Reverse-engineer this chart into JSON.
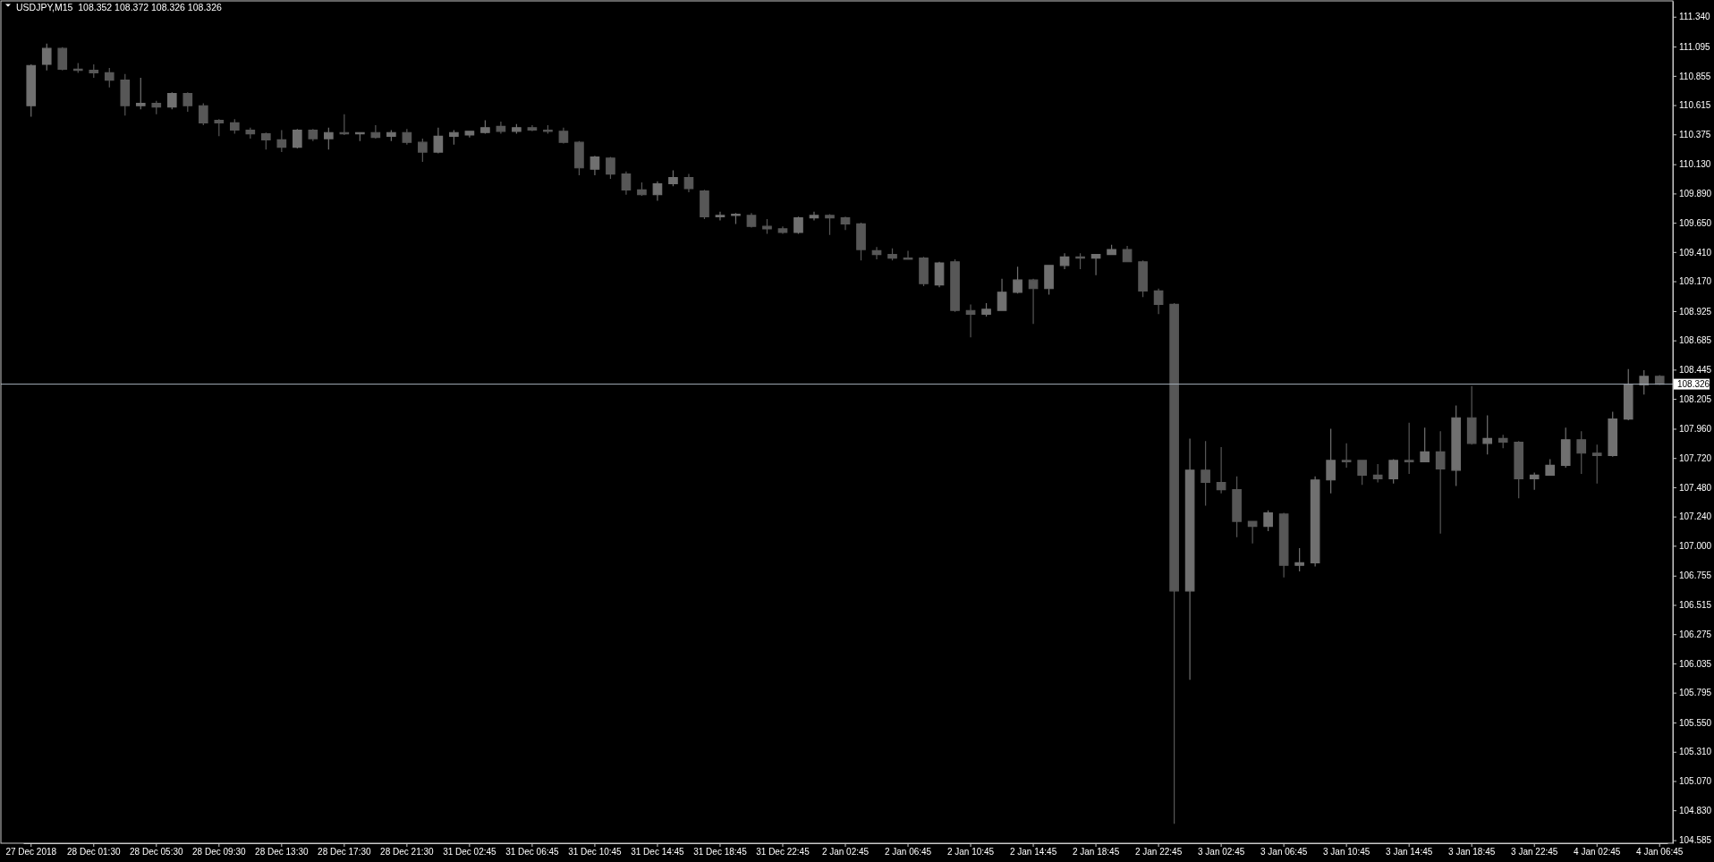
{
  "chart_data": {
    "type": "candlestick",
    "title": "USDJPY,M15  108.352 108.372 108.326 108.326",
    "categories": [
      "27 Dec 2018",
      null,
      null,
      null,
      "28 Dec 01:30",
      null,
      null,
      null,
      "28 Dec 05:30",
      null,
      null,
      null,
      "28 Dec 09:30",
      null,
      null,
      null,
      "28 Dec 13:30",
      null,
      null,
      null,
      "28 Dec 17:30",
      null,
      null,
      null,
      "28 Dec 21:30",
      null,
      null,
      null,
      "31 Dec 02:45",
      null,
      null,
      null,
      "31 Dec 06:45",
      null,
      null,
      null,
      "31 Dec 10:45",
      null,
      null,
      null,
      "31 Dec 14:45",
      null,
      null,
      null,
      "31 Dec 18:45",
      null,
      null,
      null,
      "31 Dec 22:45",
      null,
      null,
      null,
      "2 Jan 02:45",
      null,
      null,
      null,
      "2 Jan 06:45",
      null,
      null,
      null,
      "2 Jan 10:45",
      null,
      null,
      null,
      "2 Jan 14:45",
      null,
      null,
      null,
      "2 Jan 18:45",
      null,
      null,
      null,
      "2 Jan 22:45",
      null,
      null,
      null,
      "3 Jan 02:45",
      null,
      null,
      null,
      "3 Jan 06:45",
      null,
      null,
      null,
      "3 Jan 10:45",
      null,
      null,
      null,
      "3 Jan 14:45",
      null,
      null,
      null,
      "3 Jan 18:45",
      null,
      null,
      null,
      "3 Jan 22:45",
      null,
      null,
      null,
      "4 Jan 02:45",
      null,
      null,
      null,
      "4 Jan 06:45"
    ],
    "ohlc": [
      [
        110.61,
        110.95,
        110.52,
        110.94
      ],
      [
        110.95,
        111.12,
        110.9,
        111.08
      ],
      [
        111.08,
        111.09,
        110.9,
        110.91
      ],
      [
        110.91,
        110.96,
        110.88,
        110.9
      ],
      [
        110.9,
        110.95,
        110.84,
        110.88
      ],
      [
        110.88,
        110.92,
        110.76,
        110.82
      ],
      [
        110.82,
        110.87,
        110.53,
        110.61
      ],
      [
        110.61,
        110.84,
        110.58,
        110.63
      ],
      [
        110.63,
        110.65,
        110.54,
        110.6
      ],
      [
        110.6,
        110.72,
        110.58,
        110.71
      ],
      [
        110.71,
        110.72,
        110.56,
        110.61
      ],
      [
        110.61,
        110.63,
        110.45,
        110.47
      ],
      [
        110.49,
        110.5,
        110.36,
        110.47
      ],
      [
        110.47,
        110.5,
        110.38,
        110.41
      ],
      [
        110.41,
        110.43,
        110.34,
        110.38
      ],
      [
        110.38,
        110.39,
        110.25,
        110.33
      ],
      [
        110.33,
        110.41,
        110.23,
        110.27
      ],
      [
        110.27,
        110.42,
        110.26,
        110.41
      ],
      [
        110.41,
        110.42,
        110.32,
        110.34
      ],
      [
        110.34,
        110.43,
        110.25,
        110.39
      ],
      [
        110.39,
        110.54,
        110.37,
        110.38
      ],
      [
        110.38,
        110.39,
        110.32,
        110.39
      ],
      [
        110.39,
        110.45,
        110.34,
        110.35
      ],
      [
        110.36,
        110.41,
        110.32,
        110.39
      ],
      [
        110.39,
        110.42,
        110.29,
        110.31
      ],
      [
        110.31,
        110.34,
        110.15,
        110.23
      ],
      [
        110.23,
        110.43,
        110.22,
        110.36
      ],
      [
        110.36,
        110.41,
        110.29,
        110.39
      ],
      [
        110.37,
        110.4,
        110.35,
        110.4
      ],
      [
        110.39,
        110.49,
        110.38,
        110.43
      ],
      [
        110.44,
        110.48,
        110.38,
        110.4
      ],
      [
        110.4,
        110.46,
        110.38,
        110.43
      ],
      [
        110.43,
        110.45,
        110.4,
        110.41
      ],
      [
        110.41,
        110.45,
        110.38,
        110.4
      ],
      [
        110.4,
        110.43,
        110.3,
        110.31
      ],
      [
        110.31,
        110.32,
        110.04,
        110.1
      ],
      [
        110.09,
        110.2,
        110.04,
        110.19
      ],
      [
        110.18,
        110.19,
        110.01,
        110.05
      ],
      [
        110.05,
        110.07,
        109.88,
        109.92
      ],
      [
        109.92,
        109.98,
        109.87,
        109.88
      ],
      [
        109.88,
        109.99,
        109.83,
        109.97
      ],
      [
        109.97,
        110.08,
        109.95,
        110.02
      ],
      [
        110.02,
        110.05,
        109.9,
        109.93
      ],
      [
        109.91,
        109.92,
        109.68,
        109.7
      ],
      [
        109.7,
        109.74,
        109.67,
        109.71
      ],
      [
        109.71,
        109.73,
        109.64,
        109.72
      ],
      [
        109.71,
        109.73,
        109.61,
        109.62
      ],
      [
        109.62,
        109.68,
        109.56,
        109.6
      ],
      [
        109.6,
        109.62,
        109.56,
        109.57
      ],
      [
        109.57,
        109.7,
        109.56,
        109.69
      ],
      [
        109.69,
        109.74,
        109.67,
        109.71
      ],
      [
        109.71,
        109.72,
        109.55,
        109.69
      ],
      [
        109.69,
        109.7,
        109.59,
        109.64
      ],
      [
        109.64,
        109.65,
        109.34,
        109.43
      ],
      [
        109.42,
        109.45,
        109.35,
        109.39
      ],
      [
        109.39,
        109.44,
        109.34,
        109.36
      ],
      [
        109.36,
        109.42,
        109.35,
        109.35
      ],
      [
        109.36,
        109.37,
        109.13,
        109.15
      ],
      [
        109.14,
        109.33,
        109.12,
        109.32
      ],
      [
        109.33,
        109.35,
        108.92,
        108.93
      ],
      [
        108.93,
        108.98,
        108.71,
        108.9
      ],
      [
        108.9,
        108.99,
        108.88,
        108.94
      ],
      [
        108.93,
        109.19,
        108.93,
        109.08
      ],
      [
        109.08,
        109.29,
        109.07,
        109.18
      ],
      [
        109.18,
        109.19,
        108.82,
        109.11
      ],
      [
        109.11,
        109.3,
        109.06,
        109.3
      ],
      [
        109.3,
        109.4,
        109.27,
        109.37
      ],
      [
        109.37,
        109.4,
        109.27,
        109.36
      ],
      [
        109.36,
        109.39,
        109.22,
        109.39
      ],
      [
        109.39,
        109.47,
        109.39,
        109.43
      ],
      [
        109.43,
        109.46,
        109.33,
        109.33
      ],
      [
        109.33,
        109.34,
        109.04,
        109.09
      ],
      [
        109.09,
        109.11,
        108.9,
        108.98
      ],
      [
        108.98,
        108.99,
        104.72,
        106.63
      ],
      [
        106.63,
        107.88,
        105.9,
        107.62
      ],
      [
        107.62,
        107.86,
        107.33,
        107.52
      ],
      [
        107.52,
        107.81,
        107.43,
        107.46
      ],
      [
        107.46,
        107.57,
        107.07,
        107.2
      ],
      [
        107.2,
        107.2,
        107.02,
        107.16
      ],
      [
        107.16,
        107.29,
        107.12,
        107.27
      ],
      [
        107.26,
        107.27,
        106.74,
        106.84
      ],
      [
        106.84,
        106.98,
        106.79,
        106.86
      ],
      [
        106.86,
        107.57,
        106.83,
        107.54
      ],
      [
        107.54,
        107.96,
        107.43,
        107.7
      ],
      [
        107.7,
        107.84,
        107.64,
        107.69
      ],
      [
        107.7,
        107.7,
        107.5,
        107.58
      ],
      [
        107.58,
        107.67,
        107.52,
        107.55
      ],
      [
        107.55,
        107.71,
        107.51,
        107.7
      ],
      [
        107.7,
        108.01,
        107.59,
        107.69
      ],
      [
        107.69,
        107.97,
        107.69,
        107.77
      ],
      [
        107.77,
        107.94,
        107.1,
        107.63
      ],
      [
        107.62,
        108.15,
        107.49,
        108.05
      ],
      [
        108.05,
        108.31,
        107.83,
        107.84
      ],
      [
        107.84,
        108.07,
        107.75,
        107.88
      ],
      [
        107.88,
        107.91,
        107.8,
        107.85
      ],
      [
        107.85,
        107.86,
        107.39,
        107.55
      ],
      [
        107.55,
        107.6,
        107.46,
        107.58
      ],
      [
        107.58,
        107.71,
        107.58,
        107.66
      ],
      [
        107.66,
        107.97,
        107.64,
        107.87
      ],
      [
        107.87,
        107.94,
        107.59,
        107.76
      ],
      [
        107.76,
        107.83,
        107.51,
        107.74
      ],
      [
        107.74,
        108.1,
        107.73,
        108.04
      ],
      [
        108.04,
        108.45,
        108.03,
        108.32
      ],
      [
        108.32,
        108.44,
        108.24,
        108.39
      ],
      [
        108.39,
        108.4,
        108.32,
        108.326
      ]
    ],
    "colors": [
      "#707070",
      "#707070",
      "#575757",
      "#575757",
      "#575757",
      "#575757",
      "#575757",
      "#707070",
      "#575757",
      "#707070",
      "#575757",
      "#575757",
      "#575757",
      "#575757",
      "#575757",
      "#575757",
      "#575757",
      "#707070",
      "#575757",
      "#707070",
      "#575757",
      "#707070",
      "#575757",
      "#707070",
      "#575757",
      "#575757",
      "#707070",
      "#707070",
      "#707070",
      "#707070",
      "#575757",
      "#707070",
      "#575757",
      "#575757",
      "#575757",
      "#575757",
      "#707070",
      "#575757",
      "#575757",
      "#575757",
      "#707070",
      "#707070",
      "#575757",
      "#575757",
      "#707070",
      "#707070",
      "#575757",
      "#575757",
      "#575757",
      "#707070",
      "#707070",
      "#575757",
      "#575757",
      "#575757",
      "#575757",
      "#575757",
      "#575757",
      "#575757",
      "#707070",
      "#575757",
      "#575757",
      "#707070",
      "#707070",
      "#707070",
      "#575757",
      "#707070",
      "#707070",
      "#575757",
      "#707070",
      "#707070",
      "#575757",
      "#575757",
      "#575757",
      "#575757",
      "#707070",
      "#575757",
      "#575757",
      "#575757",
      "#575757",
      "#707070",
      "#575757",
      "#707070",
      "#707070",
      "#707070",
      "#575757",
      "#575757",
      "#575757",
      "#707070",
      "#575757",
      "#707070",
      "#575757",
      "#707070",
      "#575757",
      "#707070",
      "#575757",
      "#575757",
      "#707070",
      "#707070",
      "#707070",
      "#575757",
      "#575757",
      "#707070",
      "#707070",
      "#707070",
      "#575757"
    ],
    "ylim": [
      104.56,
      111.47
    ],
    "yticks": [
      {
        "value": 111.34,
        "label": "111.340"
      },
      {
        "value": 111.095,
        "label": "111.095"
      },
      {
        "value": 110.855,
        "label": "110.855"
      },
      {
        "value": 110.615,
        "label": "110.615"
      },
      {
        "value": 110.375,
        "label": "110.375"
      },
      {
        "value": 110.13,
        "label": "110.130"
      },
      {
        "value": 109.89,
        "label": "109.890"
      },
      {
        "value": 109.65,
        "label": "109.650"
      },
      {
        "value": 109.41,
        "label": "109.410"
      },
      {
        "value": 109.17,
        "label": "109.170"
      },
      {
        "value": 108.925,
        "label": "108.925"
      },
      {
        "value": 108.685,
        "label": "108.685"
      },
      {
        "value": 108.445,
        "label": "108.445"
      },
      {
        "value": 108.205,
        "label": "108.205"
      },
      {
        "value": 107.96,
        "label": "107.960"
      },
      {
        "value": 107.72,
        "label": "107.720"
      },
      {
        "value": 107.48,
        "label": "107.480"
      },
      {
        "value": 107.24,
        "label": "107.240"
      },
      {
        "value": 107,
        "label": "107.000"
      },
      {
        "value": 106.755,
        "label": "106.755"
      },
      {
        "value": 106.515,
        "label": "106.515"
      },
      {
        "value": 106.275,
        "label": "106.275"
      },
      {
        "value": 106.035,
        "label": "106.035"
      },
      {
        "value": 105.795,
        "label": "105.795"
      },
      {
        "value": 105.55,
        "label": "105.550"
      },
      {
        "value": 105.31,
        "label": "105.310"
      },
      {
        "value": 105.07,
        "label": "105.070"
      },
      {
        "value": 104.83,
        "label": "104.830"
      },
      {
        "value": 104.585,
        "label": "104.585"
      }
    ],
    "ref_lines": [
      {
        "axis": "y",
        "value": 108.326,
        "label": "108.326",
        "color": "#a3adb8"
      }
    ]
  }
}
